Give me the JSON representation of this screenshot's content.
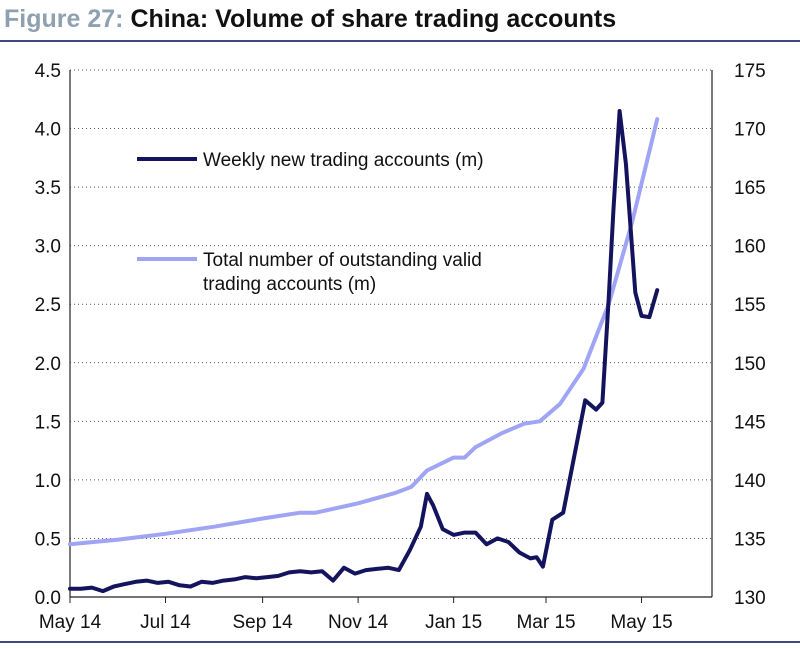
{
  "figure": {
    "number": "Figure 27:",
    "title": "China: Volume of share trading accounts"
  },
  "colors": {
    "weekly_series": "#14145e",
    "total_series": "#9fa4f4",
    "title_number": "#8fa0b0",
    "rule": "#3a4a7a"
  },
  "chart_data": {
    "type": "line",
    "title": "China: Volume of share trading accounts",
    "xlabel": "",
    "ylabel_left": "",
    "ylabel_right": "",
    "x_range": [
      "2014-05-01",
      "2015-06-15"
    ],
    "x_ticks": [
      {
        "date": "2014-05-01",
        "label": "May 14"
      },
      {
        "date": "2014-07-01",
        "label": "Jul 14"
      },
      {
        "date": "2014-09-01",
        "label": "Sep 14"
      },
      {
        "date": "2014-11-01",
        "label": "Nov 14"
      },
      {
        "date": "2015-01-01",
        "label": "Jan 15"
      },
      {
        "date": "2015-03-01",
        "label": "Mar 15"
      },
      {
        "date": "2015-05-01",
        "label": "May 15"
      }
    ],
    "y_left": {
      "min": 0,
      "max": 4.5,
      "ticks": [
        "0.0",
        "0.5",
        "1.0",
        "1.5",
        "2.0",
        "2.5",
        "3.0",
        "3.5",
        "4.0",
        "4.5"
      ]
    },
    "y_right": {
      "min": 130,
      "max": 175,
      "ticks": [
        "130",
        "135",
        "140",
        "145",
        "150",
        "155",
        "160",
        "165",
        "170",
        "175"
      ]
    },
    "grid": "horizontal dotted",
    "legend_position": "upper-left",
    "series": [
      {
        "name": "Weekly new trading accounts (m)",
        "axis": "left",
        "points": [
          [
            "2014-05-01",
            0.07
          ],
          [
            "2014-05-08",
            0.07
          ],
          [
            "2014-05-15",
            0.08
          ],
          [
            "2014-05-22",
            0.05
          ],
          [
            "2014-05-29",
            0.09
          ],
          [
            "2014-06-05",
            0.11
          ],
          [
            "2014-06-12",
            0.13
          ],
          [
            "2014-06-19",
            0.14
          ],
          [
            "2014-06-26",
            0.12
          ],
          [
            "2014-07-03",
            0.13
          ],
          [
            "2014-07-10",
            0.1
          ],
          [
            "2014-07-17",
            0.09
          ],
          [
            "2014-07-24",
            0.13
          ],
          [
            "2014-07-31",
            0.12
          ],
          [
            "2014-08-07",
            0.14
          ],
          [
            "2014-08-14",
            0.15
          ],
          [
            "2014-08-21",
            0.17
          ],
          [
            "2014-08-28",
            0.16
          ],
          [
            "2014-09-04",
            0.17
          ],
          [
            "2014-09-11",
            0.18
          ],
          [
            "2014-09-18",
            0.21
          ],
          [
            "2014-09-25",
            0.22
          ],
          [
            "2014-10-02",
            0.21
          ],
          [
            "2014-10-09",
            0.22
          ],
          [
            "2014-10-16",
            0.14
          ],
          [
            "2014-10-23",
            0.25
          ],
          [
            "2014-10-30",
            0.2
          ],
          [
            "2014-11-06",
            0.23
          ],
          [
            "2014-11-13",
            0.24
          ],
          [
            "2014-11-20",
            0.25
          ],
          [
            "2014-11-27",
            0.23
          ],
          [
            "2014-12-04",
            0.4
          ],
          [
            "2014-12-11",
            0.6
          ],
          [
            "2014-12-15",
            0.88
          ],
          [
            "2014-12-19",
            0.78
          ],
          [
            "2014-12-25",
            0.58
          ],
          [
            "2015-01-01",
            0.53
          ],
          [
            "2015-01-08",
            0.55
          ],
          [
            "2015-01-15",
            0.55
          ],
          [
            "2015-01-22",
            0.45
          ],
          [
            "2015-01-29",
            0.5
          ],
          [
            "2015-02-05",
            0.47
          ],
          [
            "2015-02-12",
            0.38
          ],
          [
            "2015-02-19",
            0.33
          ],
          [
            "2015-02-23",
            0.34
          ],
          [
            "2015-02-27",
            0.26
          ],
          [
            "2015-03-05",
            0.66
          ],
          [
            "2015-03-12",
            0.72
          ],
          [
            "2015-03-19",
            1.2
          ],
          [
            "2015-03-26",
            1.68
          ],
          [
            "2015-04-02",
            1.6
          ],
          [
            "2015-04-06",
            1.66
          ],
          [
            "2015-04-10",
            2.55
          ],
          [
            "2015-04-13",
            3.3
          ],
          [
            "2015-04-17",
            4.15
          ],
          [
            "2015-04-21",
            3.7
          ],
          [
            "2015-04-27",
            2.6
          ],
          [
            "2015-05-01",
            2.4
          ],
          [
            "2015-05-06",
            2.39
          ],
          [
            "2015-05-11",
            2.62
          ]
        ]
      },
      {
        "name": "Total number of outstanding valid trading accounts (m)",
        "axis": "right",
        "points": [
          [
            "2014-05-01",
            134.5
          ],
          [
            "2014-06-01",
            134.9
          ],
          [
            "2014-07-01",
            135.4
          ],
          [
            "2014-08-01",
            136.0
          ],
          [
            "2014-09-01",
            136.7
          ],
          [
            "2014-09-25",
            137.2
          ],
          [
            "2014-10-05",
            137.2
          ],
          [
            "2014-11-01",
            138.0
          ],
          [
            "2014-11-25",
            138.9
          ],
          [
            "2014-12-05",
            139.4
          ],
          [
            "2014-12-15",
            140.8
          ],
          [
            "2015-01-01",
            141.9
          ],
          [
            "2015-01-08",
            141.9
          ],
          [
            "2015-01-15",
            142.8
          ],
          [
            "2015-02-01",
            144.0
          ],
          [
            "2015-02-15",
            144.8
          ],
          [
            "2015-02-25",
            145.0
          ],
          [
            "2015-03-10",
            146.5
          ],
          [
            "2015-03-25",
            149.5
          ],
          [
            "2015-04-10",
            155.0
          ],
          [
            "2015-04-25",
            162.0
          ],
          [
            "2015-05-11",
            170.8
          ]
        ]
      }
    ]
  }
}
